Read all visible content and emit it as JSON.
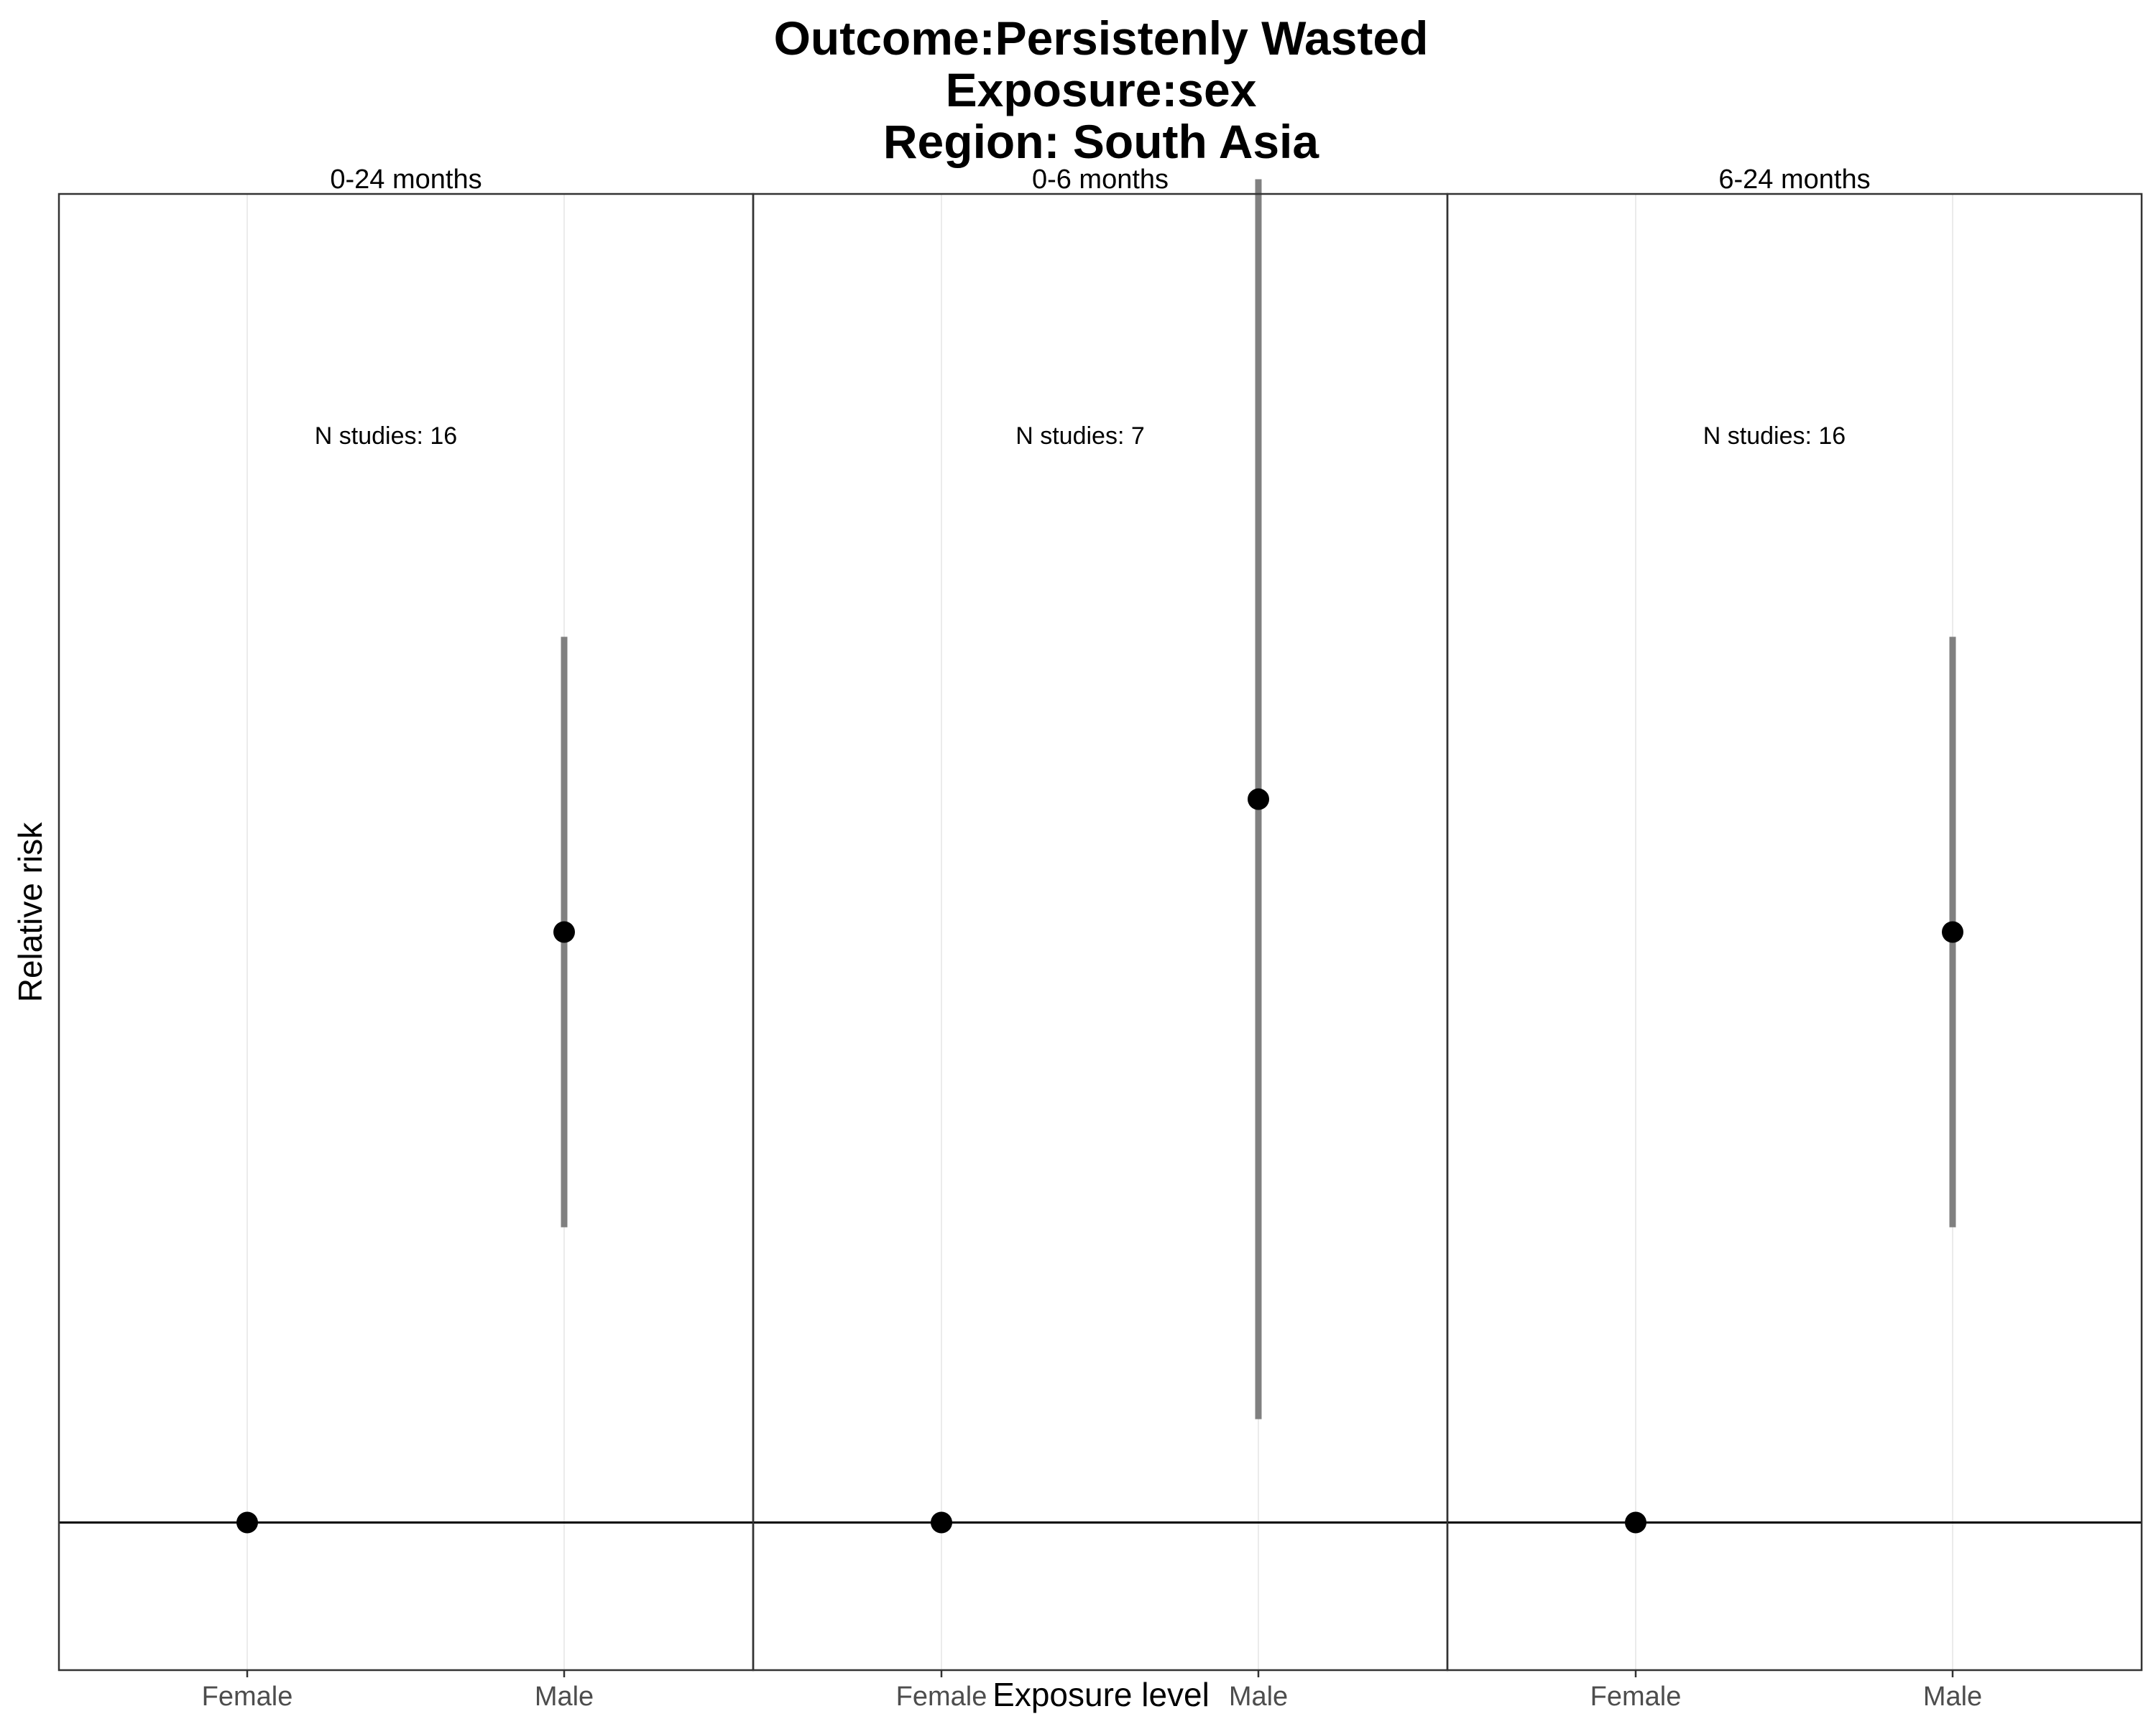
{
  "title_lines": [
    "Outcome:Persistenly Wasted",
    "Exposure:sex",
    "Region: South Asia"
  ],
  "colors": {
    "point": "#000000",
    "errorbar": "#808080",
    "panel_border": "#333333",
    "gridline": "#ebebeb",
    "refline": "#000000"
  },
  "chart_data": {
    "type": "scatter",
    "subtype": "point-range (faceted)",
    "title": "Outcome:Persistenly Wasted\nExposure:sex\nRegion: South Asia",
    "xlabel": "Exposure level",
    "ylabel": "Relative risk",
    "categories": [
      "Female",
      "Male"
    ],
    "reference_line": 1,
    "y_axis": {
      "scale": "relative",
      "tick_labels_shown": false
    },
    "ylim": [
      0.9,
      1.9
    ],
    "grid": "vertical-major",
    "facets": [
      {
        "label": "0-24 months",
        "annotation": "N studies: 16",
        "points": [
          {
            "x": "Female",
            "y": 1.0,
            "lower": 1.0,
            "upper": 1.0
          },
          {
            "x": "Male",
            "y": 1.4,
            "lower": 1.2,
            "upper": 1.6
          }
        ]
      },
      {
        "label": "0-6 months",
        "annotation": "N studies: 7",
        "points": [
          {
            "x": "Female",
            "y": 1.0,
            "lower": 1.0,
            "upper": 1.0
          },
          {
            "x": "Male",
            "y": 1.49,
            "lower": 1.07,
            "upper": 1.91
          }
        ]
      },
      {
        "label": "6-24 months",
        "annotation": "N studies: 16",
        "points": [
          {
            "x": "Female",
            "y": 1.0,
            "lower": 1.0,
            "upper": 1.0
          },
          {
            "x": "Male",
            "y": 1.4,
            "lower": 1.2,
            "upper": 1.6
          }
        ]
      }
    ]
  }
}
